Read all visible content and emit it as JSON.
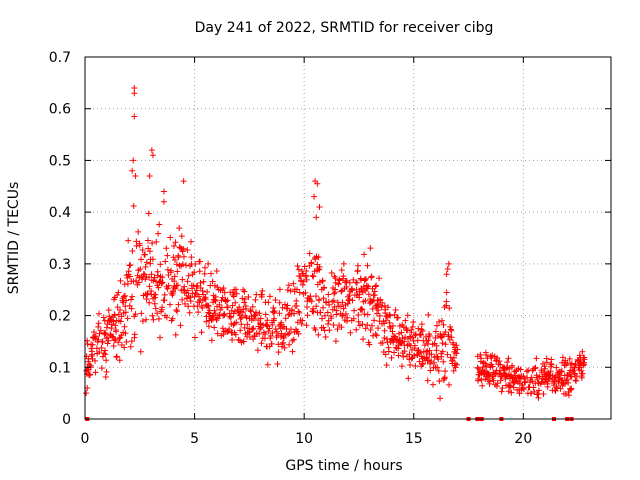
{
  "chart_data": {
    "type": "scatter",
    "title": "Day 241 of 2022, SRMTID for receiver cibg",
    "xlabel": "GPS time / hours",
    "ylabel": "SRMTID / TECUs",
    "xlim": [
      0,
      24
    ],
    "ylim": [
      0,
      0.7
    ],
    "xticks": [
      0,
      5,
      10,
      15,
      20
    ],
    "yticks": [
      0,
      0.1,
      0.2,
      0.3,
      0.4,
      0.5,
      0.6,
      0.7
    ],
    "xtick_labels": [
      "0",
      "5",
      "10",
      "15",
      "20"
    ],
    "ytick_labels": [
      "0",
      "0.1",
      "0.2",
      "0.3",
      "0.4",
      "0.5",
      "0.6",
      "0.7"
    ],
    "grid": true,
    "marker": "plus",
    "series": [
      {
        "name": "SRMTID",
        "color": "#ff0000",
        "envelope_hours": [
          0.0,
          0.5,
          1.0,
          1.5,
          2.0,
          2.3,
          2.7,
          3.0,
          3.5,
          4.0,
          4.5,
          5.0,
          6.0,
          7.0,
          8.0,
          9.0,
          9.5,
          10.0,
          10.5,
          11.0,
          12.0,
          13.0,
          14.0,
          15.0,
          16.0,
          16.5,
          17.0,
          18.0,
          19.0,
          20.0,
          21.0,
          22.0,
          22.8
        ],
        "envelope_median": [
          0.11,
          0.14,
          0.14,
          0.18,
          0.24,
          0.28,
          0.27,
          0.27,
          0.26,
          0.25,
          0.27,
          0.25,
          0.22,
          0.2,
          0.19,
          0.18,
          0.21,
          0.24,
          0.25,
          0.22,
          0.24,
          0.23,
          0.17,
          0.14,
          0.13,
          0.15,
          0.11,
          0.1,
          0.09,
          0.07,
          0.08,
          0.08,
          0.11
        ],
        "envelope_spread": [
          0.04,
          0.05,
          0.06,
          0.07,
          0.09,
          0.12,
          0.1,
          0.1,
          0.09,
          0.08,
          0.08,
          0.07,
          0.06,
          0.05,
          0.06,
          0.06,
          0.07,
          0.08,
          0.08,
          0.07,
          0.07,
          0.07,
          0.05,
          0.05,
          0.05,
          0.07,
          0.04,
          0.03,
          0.03,
          0.03,
          0.03,
          0.03,
          0.02
        ],
        "peaks": [
          {
            "x": 2.25,
            "y": 0.64
          },
          {
            "x": 2.25,
            "y": 0.63
          },
          {
            "x": 2.25,
            "y": 0.585
          },
          {
            "x": 2.2,
            "y": 0.5
          },
          {
            "x": 2.15,
            "y": 0.48
          },
          {
            "x": 2.3,
            "y": 0.47
          },
          {
            "x": 3.05,
            "y": 0.52
          },
          {
            "x": 3.1,
            "y": 0.51
          },
          {
            "x": 2.95,
            "y": 0.47
          },
          {
            "x": 4.5,
            "y": 0.46
          },
          {
            "x": 3.6,
            "y": 0.44
          },
          {
            "x": 3.6,
            "y": 0.42
          },
          {
            "x": 10.5,
            "y": 0.46
          },
          {
            "x": 10.6,
            "y": 0.455
          },
          {
            "x": 10.45,
            "y": 0.43
          },
          {
            "x": 10.7,
            "y": 0.41
          },
          {
            "x": 10.55,
            "y": 0.39
          },
          {
            "x": 16.6,
            "y": 0.3
          },
          {
            "x": 16.55,
            "y": 0.29
          },
          {
            "x": 16.5,
            "y": 0.28
          },
          {
            "x": 0.1,
            "y": 0.06
          },
          {
            "x": 0.05,
            "y": 0.05
          },
          {
            "x": 16.2,
            "y": 0.04
          }
        ],
        "zero_points": [
          0.1,
          17.5,
          17.9,
          18.0,
          18.1,
          19.0,
          21.4,
          22.0,
          22.2
        ],
        "gap": [
          17.0,
          17.9
        ]
      }
    ]
  }
}
